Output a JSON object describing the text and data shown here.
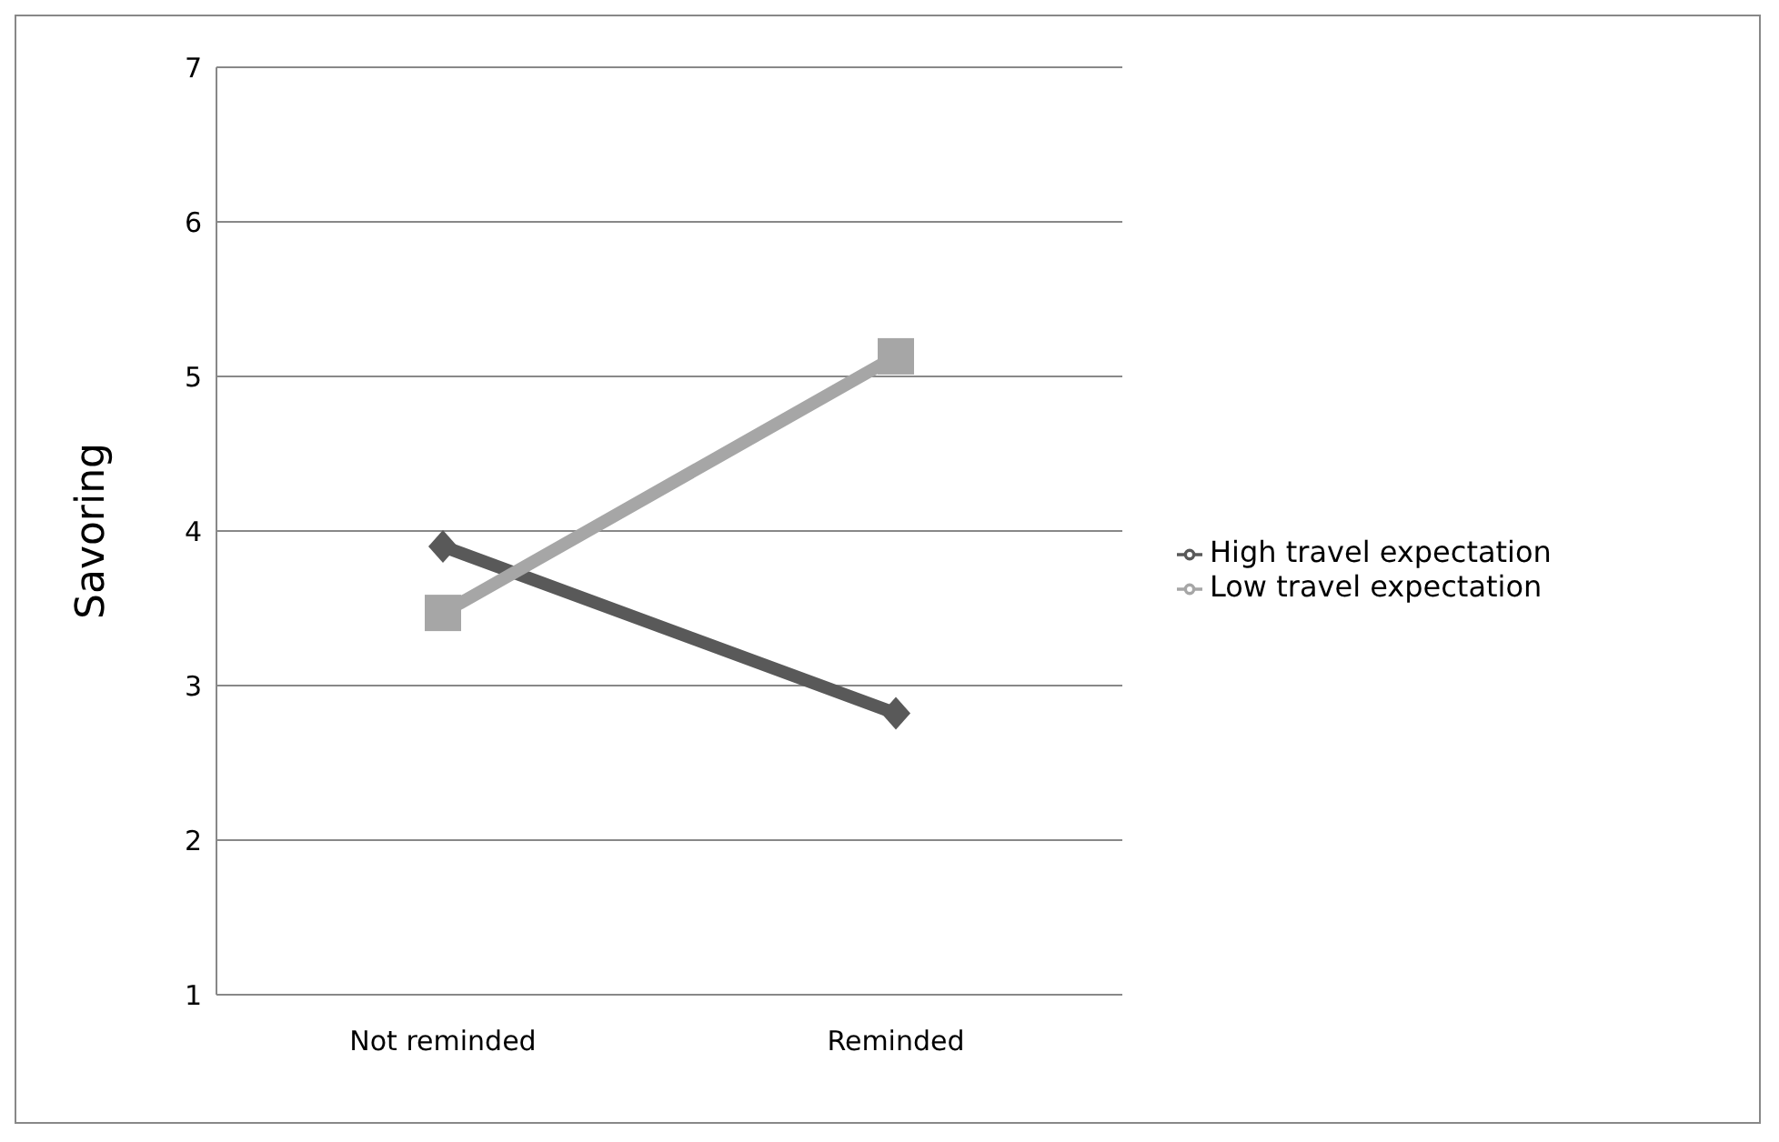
{
  "chart_data": {
    "type": "line",
    "ylabel": "Savoring",
    "categories": [
      "Not reminded",
      "Reminded"
    ],
    "series": [
      {
        "name": "High travel expectation",
        "color": "#595959",
        "marker": "diamond",
        "values": [
          3.9,
          2.82
        ]
      },
      {
        "name": "Low travel expectation",
        "color": "#a6a6a6",
        "marker": "square",
        "values": [
          3.47,
          5.13
        ]
      }
    ],
    "ylim": [
      1,
      7
    ],
    "yticks": [
      1,
      2,
      3,
      4,
      5,
      6,
      7
    ],
    "grid": "y",
    "legend": "right"
  }
}
